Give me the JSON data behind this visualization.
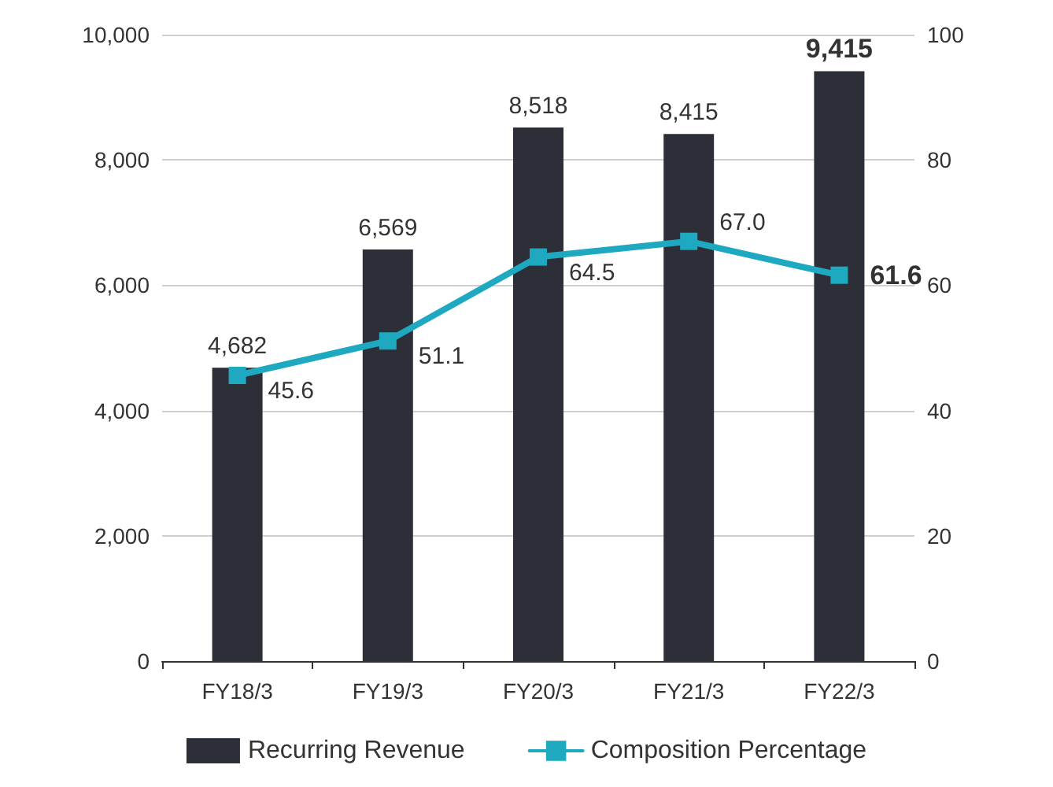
{
  "chart_data": {
    "type": "bar",
    "categories": [
      "FY18/3",
      "FY19/3",
      "FY20/3",
      "FY21/3",
      "FY22/3"
    ],
    "series": [
      {
        "name": "Recurring Revenue",
        "color": "#2c2f37",
        "values": [
          4682,
          6569,
          8518,
          8415,
          9415
        ],
        "value_labels": [
          "4,682",
          "6,569",
          "8,518",
          "8,415",
          "9,415"
        ]
      },
      {
        "name": "Composition Percentage",
        "type": "line",
        "axis": "y2",
        "color": "#1fa9c1",
        "values": [
          45.6,
          51.1,
          64.5,
          67.0,
          61.6
        ],
        "value_labels": [
          "45.6",
          "51.1",
          "64.5",
          "67.0",
          "61.6"
        ]
      }
    ],
    "ylim": [
      0,
      10000
    ],
    "yticks": [
      0,
      {
        "value": 2000,
        "label": "2,000"
      },
      {
        "value": 4000,
        "label": "4,000"
      },
      {
        "value": 6000,
        "label": "6,000"
      },
      {
        "value": 8000,
        "label": "8,000"
      },
      {
        "value": 10000,
        "label": "10,000"
      }
    ],
    "y2lim": [
      0,
      100
    ],
    "y2ticks": [
      0,
      20,
      40,
      60,
      80,
      100
    ],
    "grid": "y",
    "legend": "bottom",
    "marker": "square",
    "line_style": "solid"
  }
}
